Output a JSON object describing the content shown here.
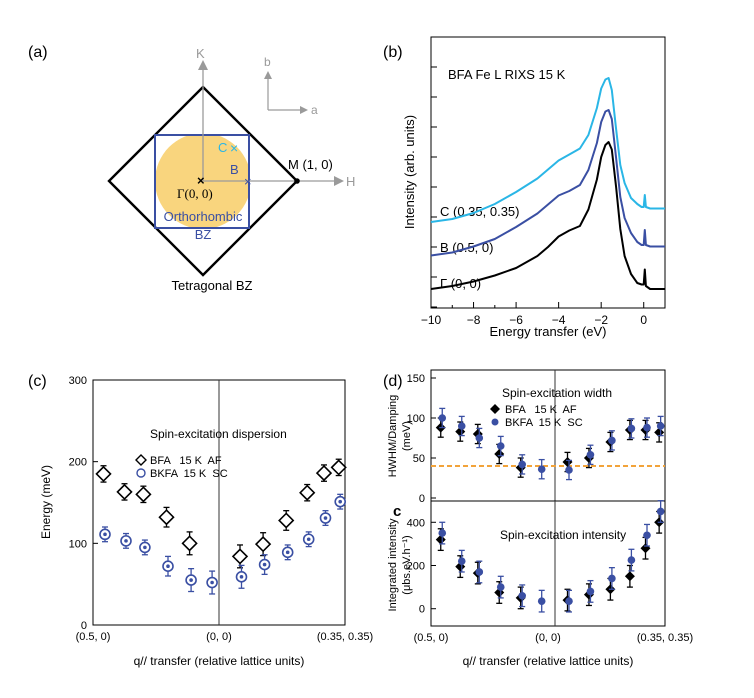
{
  "colors": {
    "bfa": "#000000",
    "bkfa": "#3a4fa3",
    "cyan": "#2ab6e6",
    "yellow": "#f9d57e",
    "orange": "#f2a33a",
    "grey": "#9a9a9a",
    "zone": "#3a4fa3"
  },
  "panel_a": {
    "label": "(a)",
    "k_axis": "K",
    "h_axis": "H",
    "b_axis": "b",
    "a_axis": "a",
    "point_c": "C",
    "point_b": "B",
    "point_m": "M (1, 0)",
    "point_gamma": "Γ(0, 0)",
    "ortho_label_1": "Orthorhombic",
    "ortho_label_2": "BZ",
    "tetra_label": "Tetragonal BZ"
  },
  "chart_data": [
    {
      "id": "b",
      "type": "line",
      "label": "(b)",
      "title": "BFA Fe L RIXS 15 K",
      "xlabel": "Energy transfer (eV)",
      "ylabel": "Intensity (arb. units)",
      "xlim": [
        -10,
        1
      ],
      "xticks": [
        -10,
        -8,
        -6,
        -4,
        -2,
        0
      ],
      "xtick_labels": [
        "−10",
        "−8",
        "−6",
        "−4",
        "−2",
        "0"
      ],
      "series": [
        {
          "name": "Γ (0, 0)",
          "color": "#000000",
          "offset": 0,
          "x": [
            -10,
            -9,
            -8,
            -7,
            -6,
            -5,
            -4.5,
            -4,
            -3.5,
            -3,
            -2.6,
            -2.2,
            -2.0,
            -1.8,
            -1.65,
            -1.5,
            -1.3,
            -1.1,
            -0.9,
            -0.6,
            -0.3,
            -0.1,
            0,
            0.05,
            0.1,
            0.3,
            0.6,
            1.0
          ],
          "y": [
            0.02,
            0.04,
            0.07,
            0.11,
            0.16,
            0.24,
            0.3,
            0.37,
            0.41,
            0.44,
            0.55,
            0.75,
            0.9,
            0.98,
            1.0,
            0.95,
            0.7,
            0.42,
            0.24,
            0.12,
            0.06,
            0.05,
            0.05,
            0.15,
            0.04,
            0.02,
            0.02,
            0.02
          ]
        },
        {
          "name": "B (0.5, 0)",
          "color": "#3a4fa3",
          "offset": 1,
          "x": [
            -10,
            -9,
            -8,
            -7,
            -6,
            -5,
            -4.5,
            -4,
            -3.5,
            -3,
            -2.6,
            -2.2,
            -2.0,
            -1.8,
            -1.65,
            -1.5,
            -1.3,
            -1.1,
            -0.9,
            -0.6,
            -0.3,
            -0.1,
            0,
            0.05,
            0.1,
            0.3,
            0.6,
            1.0
          ],
          "y": [
            0.03,
            0.05,
            0.09,
            0.14,
            0.22,
            0.31,
            0.37,
            0.43,
            0.46,
            0.5,
            0.6,
            0.78,
            0.92,
            0.99,
            1.0,
            0.94,
            0.68,
            0.42,
            0.28,
            0.18,
            0.12,
            0.1,
            0.1,
            0.2,
            0.1,
            0.09,
            0.09,
            0.09
          ]
        },
        {
          "name": "C (0.35, 0.35)",
          "color": "#2ab6e6",
          "offset": 2,
          "x": [
            -10,
            -9,
            -8,
            -7,
            -6,
            -5,
            -4.5,
            -4,
            -3.5,
            -3,
            -2.6,
            -2.2,
            -2.0,
            -1.8,
            -1.65,
            -1.5,
            -1.3,
            -1.1,
            -0.9,
            -0.6,
            -0.3,
            -0.1,
            0,
            0.05,
            0.1,
            0.3,
            0.6,
            1.0
          ],
          "y": [
            0.04,
            0.06,
            0.1,
            0.16,
            0.24,
            0.33,
            0.39,
            0.45,
            0.49,
            0.53,
            0.62,
            0.8,
            0.93,
            0.99,
            1.0,
            0.92,
            0.66,
            0.42,
            0.3,
            0.2,
            0.16,
            0.14,
            0.14,
            0.22,
            0.14,
            0.13,
            0.13,
            0.13
          ]
        }
      ]
    },
    {
      "id": "c",
      "type": "scatter",
      "label": "(c)",
      "annotation": "Spin-excitation dispersion",
      "xlabel": "q// transfer (relative lattice units)",
      "ylabel": "Energy (meV)",
      "ylim": [
        0,
        300
      ],
      "yticks": [
        0,
        100,
        200,
        300
      ],
      "xlim": [
        0,
        12
      ],
      "xtick_positions": [
        0,
        6,
        12
      ],
      "xtick_labels": [
        "(0.5, 0)",
        "(0, 0)",
        "(0.35, 0.35)"
      ],
      "legend": [
        "BFA   15 K  AF",
        "BKFA  15 K  SC"
      ],
      "series": [
        {
          "name": "BFA 15 K AF",
          "marker": "open-diamond",
          "color": "#000000",
          "x": [
            0.5,
            1.5,
            2.4,
            3.5,
            4.6,
            7.0,
            8.1,
            9.2,
            10.2,
            11.0,
            11.7
          ],
          "y": [
            185,
            163,
            160,
            132,
            100,
            84,
            99,
            128,
            162,
            186,
            193
          ],
          "err": [
            10,
            10,
            10,
            12,
            14,
            14,
            14,
            12,
            10,
            10,
            10
          ]
        },
        {
          "name": "BKFA 15 K SC",
          "marker": "open-circle",
          "color": "#3a4fa3",
          "x": [
            0.5,
            1.5,
            2.4,
            3.5,
            4.6,
            5.6,
            7.0,
            8.1,
            9.2,
            10.2,
            11.0,
            11.7
          ],
          "y": [
            111,
            103,
            95,
            72,
            55,
            52,
            59,
            74,
            89,
            105,
            131,
            151
          ],
          "err": [
            9,
            9,
            9,
            12,
            14,
            14,
            14,
            12,
            9,
            9,
            9,
            9
          ]
        }
      ]
    },
    {
      "id": "d-top",
      "type": "scatter",
      "label": "(d)",
      "annotation": "Spin-excitation width",
      "ylabel": "HWHM/Damping (meV)",
      "ylim": [
        0,
        150
      ],
      "yticks": [
        0,
        50,
        100,
        150
      ],
      "xlim": [
        0,
        12
      ],
      "reference_line": 40,
      "legend": [
        "BFA   15 K  AF",
        "BKFA  15 K  SC"
      ],
      "series": [
        {
          "name": "BFA 15 K AF",
          "marker": "filled-diamond",
          "color": "#000000",
          "x": [
            0.5,
            1.5,
            2.4,
            3.5,
            4.6,
            7.0,
            8.1,
            9.2,
            10.2,
            11.0,
            11.7
          ],
          "y": [
            88,
            83,
            80,
            55,
            38,
            45,
            50,
            70,
            85,
            85,
            82
          ],
          "err": [
            12,
            12,
            12,
            12,
            12,
            12,
            12,
            12,
            12,
            12,
            12
          ]
        },
        {
          "name": "BKFA 15 K SC",
          "marker": "filled-circle",
          "color": "#3a4fa3",
          "x": [
            0.5,
            1.5,
            2.4,
            3.5,
            4.6,
            5.6,
            7.0,
            8.1,
            9.2,
            10.2,
            11.0,
            11.7
          ],
          "y": [
            100,
            90,
            75,
            65,
            42,
            36,
            35,
            54,
            72,
            87,
            88,
            90
          ],
          "err": [
            12,
            12,
            12,
            12,
            12,
            12,
            12,
            12,
            12,
            12,
            12,
            12
          ]
        }
      ]
    },
    {
      "id": "d-bottom",
      "type": "scatter",
      "label": "c",
      "annotation": "Spin-excitation intensity",
      "xlabel": "q// transfer (relative lattice units)",
      "ylabel": "Integrated intensity (μbs.eV.h⁻¹)",
      "ylim": [
        -80,
        480
      ],
      "yticks": [
        0,
        200,
        400
      ],
      "xlim": [
        0,
        12
      ],
      "xtick_positions": [
        0,
        6,
        12
      ],
      "xtick_labels": [
        "(0.5, 0)",
        "(0, 0)",
        "(0.35, 0.35)"
      ],
      "series": [
        {
          "name": "BFA 15 K AF",
          "marker": "filled-diamond",
          "color": "#000000",
          "x": [
            0.5,
            1.5,
            2.4,
            3.5,
            4.6,
            7.0,
            8.1,
            9.2,
            10.2,
            11.0,
            11.7
          ],
          "y": [
            320,
            195,
            165,
            75,
            50,
            40,
            65,
            90,
            150,
            280,
            400
          ],
          "err": [
            50,
            50,
            50,
            50,
            50,
            50,
            50,
            50,
            50,
            50,
            50
          ]
        },
        {
          "name": "BKFA 15 K SC",
          "marker": "filled-circle",
          "color": "#3a4fa3",
          "x": [
            0.5,
            1.5,
            2.4,
            3.5,
            4.6,
            5.6,
            7.0,
            8.1,
            9.2,
            10.2,
            11.0,
            11.7
          ],
          "y": [
            350,
            220,
            170,
            100,
            60,
            35,
            35,
            80,
            140,
            225,
            340,
            450
          ],
          "err": [
            50,
            50,
            50,
            50,
            50,
            50,
            50,
            50,
            50,
            50,
            50,
            50
          ]
        }
      ]
    }
  ]
}
